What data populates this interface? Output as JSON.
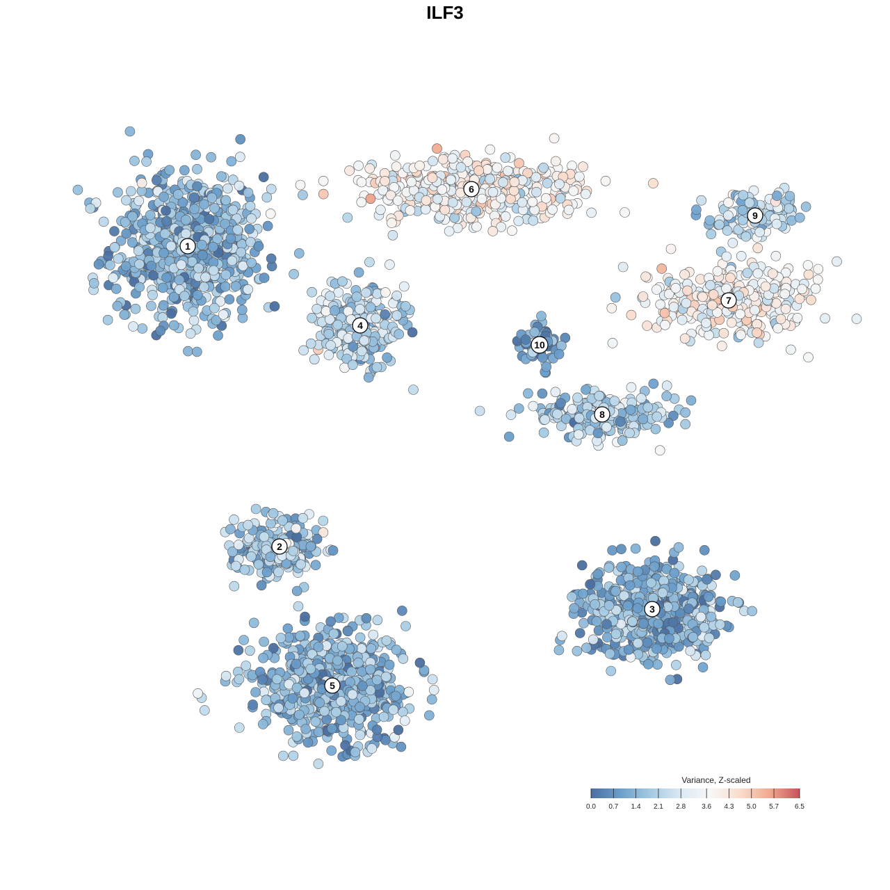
{
  "chart_data": {
    "type": "scatter",
    "title": "ILF3",
    "xlabel": "",
    "ylabel": "",
    "grid": false,
    "legend": {
      "title": "Variance, Z-scaled",
      "position": "bottom-right",
      "range": [
        0.0,
        6.5
      ],
      "ticks": [
        "0.0",
        "0.7",
        "1.4",
        "2.1",
        "2.8",
        "3.6",
        "4.3",
        "5.0",
        "5.7",
        "6.5"
      ],
      "colors": [
        "#4a6fa0",
        "#6b9fcc",
        "#a4cae3",
        "#dbe9f3",
        "#f7f7f7",
        "#fadccd",
        "#f0a98e",
        "#c8525a"
      ]
    },
    "clusters": [
      {
        "label": "1",
        "x": -18.5,
        "y": 14.3,
        "mean_value": 1.5
      },
      {
        "label": "2",
        "x": -11.9,
        "y": -7.3,
        "mean_value": 1.9
      },
      {
        "label": "3",
        "x": 14.9,
        "y": -11.8,
        "mean_value": 1.3
      },
      {
        "label": "4",
        "x": -6.1,
        "y": 8.6,
        "mean_value": 2.2
      },
      {
        "label": "5",
        "x": -8.1,
        "y": -17.3,
        "mean_value": 1.4
      },
      {
        "label": "6",
        "x": 1.9,
        "y": 18.4,
        "mean_value": 3.6
      },
      {
        "label": "7",
        "x": 20.4,
        "y": 10.4,
        "mean_value": 3.7
      },
      {
        "label": "8",
        "x": 11.3,
        "y": 2.2,
        "mean_value": 2.0
      },
      {
        "label": "9",
        "x": 22.3,
        "y": 16.5,
        "mean_value": 2.3
      },
      {
        "label": "10",
        "x": 6.8,
        "y": 7.2,
        "mean_value": 0.9
      }
    ]
  }
}
